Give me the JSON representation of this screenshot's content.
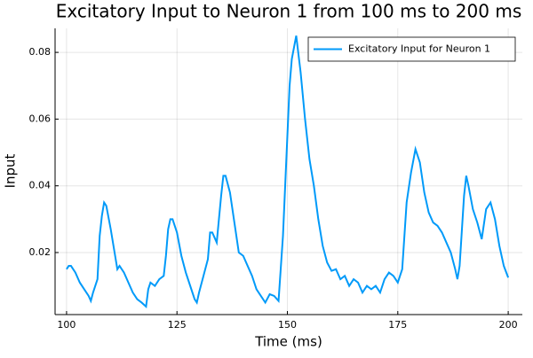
{
  "chart_data": {
    "type": "line",
    "title": "Excitatory Input to Neuron 1 from 100 ms to 200 ms",
    "x_label": "Time (ms)",
    "y_label": "Input",
    "x": [
      100,
      100.5,
      101,
      102,
      103,
      104,
      105,
      105.5,
      106,
      107,
      107.5,
      108,
      108.5,
      109,
      110,
      111,
      111.5,
      112,
      113,
      114,
      115,
      116,
      117,
      118,
      118.5,
      119,
      120,
      121,
      122,
      122.5,
      123,
      123.5,
      124,
      125,
      126,
      127,
      128,
      129,
      129.5,
      130,
      131,
      132,
      132.5,
      133,
      134,
      135,
      135.5,
      136,
      137,
      138,
      139,
      140,
      141,
      142,
      143,
      144,
      145,
      146,
      147,
      148,
      149,
      150,
      150.5,
      151,
      152,
      153,
      154,
      155,
      156,
      157,
      158,
      159,
      160,
      161,
      162,
      163,
      164,
      165,
      166,
      167,
      168,
      169,
      170,
      171,
      172,
      173,
      174,
      175,
      176,
      177,
      178,
      179,
      180,
      181,
      182,
      183,
      184,
      185,
      186,
      187,
      188,
      188.5,
      189,
      190,
      190.5,
      191,
      192,
      193,
      194,
      195,
      196,
      197,
      198,
      199,
      200
    ],
    "series": [
      {
        "name": "Excitatory Input for Neuron 1",
        "color": "#009af9",
        "values": [
          0.015,
          0.016,
          0.016,
          0.014,
          0.011,
          0.009,
          0.007,
          0.0055,
          0.008,
          0.012,
          0.025,
          0.031,
          0.035,
          0.034,
          0.027,
          0.019,
          0.015,
          0.016,
          0.014,
          0.011,
          0.008,
          0.006,
          0.005,
          0.0038,
          0.009,
          0.011,
          0.01,
          0.012,
          0.013,
          0.019,
          0.027,
          0.03,
          0.03,
          0.026,
          0.019,
          0.014,
          0.01,
          0.006,
          0.005,
          0.008,
          0.013,
          0.018,
          0.026,
          0.026,
          0.023,
          0.037,
          0.043,
          0.043,
          0.038,
          0.029,
          0.02,
          0.019,
          0.016,
          0.013,
          0.009,
          0.007,
          0.005,
          0.0075,
          0.007,
          0.0055,
          0.025,
          0.055,
          0.07,
          0.078,
          0.085,
          0.074,
          0.06,
          0.048,
          0.04,
          0.03,
          0.022,
          0.017,
          0.0145,
          0.015,
          0.012,
          0.013,
          0.01,
          0.012,
          0.011,
          0.008,
          0.01,
          0.009,
          0.01,
          0.008,
          0.012,
          0.014,
          0.013,
          0.011,
          0.015,
          0.035,
          0.044,
          0.051,
          0.047,
          0.038,
          0.032,
          0.029,
          0.028,
          0.026,
          0.023,
          0.02,
          0.015,
          0.012,
          0.016,
          0.037,
          0.043,
          0.04,
          0.033,
          0.029,
          0.024,
          0.033,
          0.035,
          0.03,
          0.022,
          0.016,
          0.0125
        ]
      }
    ],
    "xlim": [
      97.4,
      203.2
    ],
    "ylim": [
      0.0014,
      0.0872
    ],
    "xticks": [
      100,
      125,
      150,
      175,
      200
    ],
    "yticks": [
      0.02,
      0.04,
      0.06,
      0.08
    ],
    "grid": true,
    "legend": "top-right"
  }
}
